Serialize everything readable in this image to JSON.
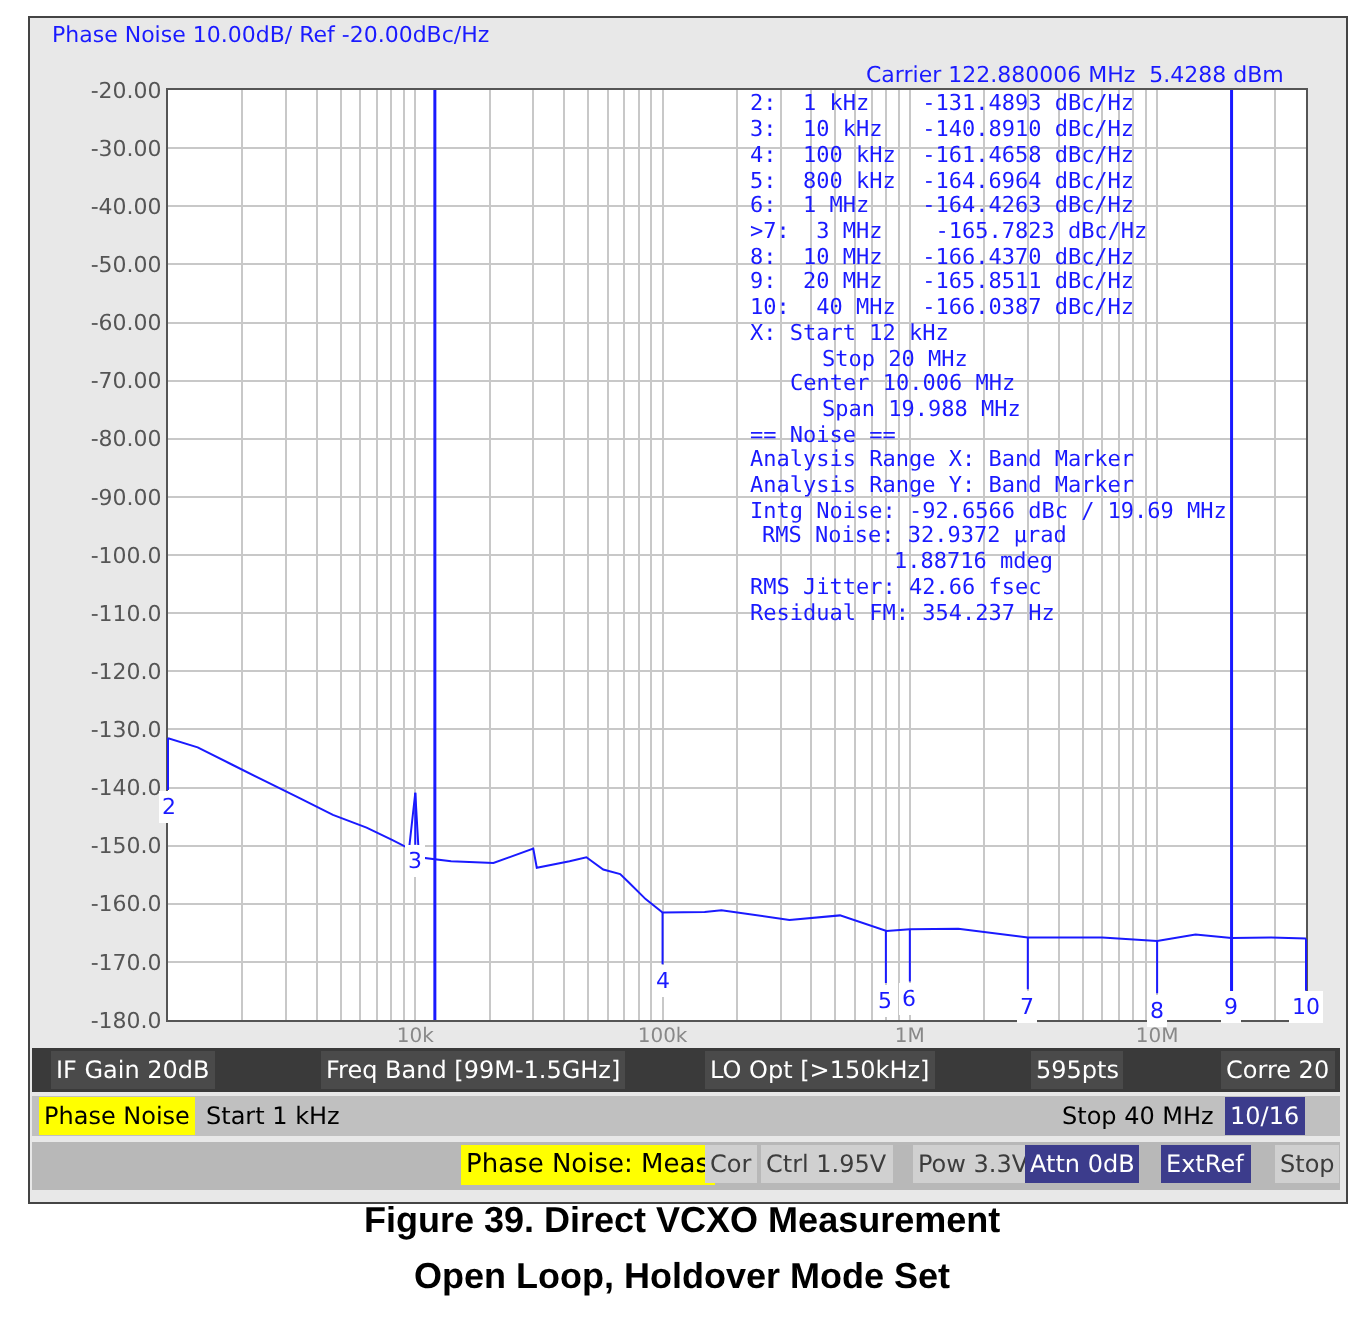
{
  "chart_data": {
    "type": "line",
    "title": "Phase Noise 10.00dB/ Ref -20.00dBc/Hz",
    "x": [
      1000,
      1318,
      1803,
      2472,
      3390,
      4645,
      6353,
      8054,
      9440,
      10000,
      10350,
      13960,
      20700,
      30000,
      31000,
      42070,
      49200,
      57560,
      67400,
      72900,
      85400,
      100000,
      148000,
      173000,
      326000,
      522000,
      805000,
      1000000,
      1570000,
      3000000,
      6000000,
      10000000,
      14300000,
      20000000,
      28900000,
      40000000
    ],
    "series": [
      {
        "color": "#1a1aff",
        "values": [
          -131.5,
          -133.1,
          -136,
          -138.9,
          -141.8,
          -144.7,
          -146.9,
          -149,
          -150.5,
          -140.9,
          -152,
          -152.7,
          -153,
          -150.5,
          -153.8,
          -152.7,
          -152,
          -154.1,
          -154.9,
          -156.3,
          -159.2,
          -161.5,
          -161.4,
          -161.1,
          -162.8,
          -162,
          -164.7,
          -164.4,
          -164.3,
          -165.8,
          -165.8,
          -166.4,
          -165.3,
          -165.9,
          -165.8,
          -166
        ]
      }
    ],
    "xlim": [
      1000,
      40000000
    ],
    "xticks": [
      {
        "value": 1000,
        "label": null
      },
      {
        "value": 2000,
        "label": null
      },
      {
        "value": 3000,
        "label": null
      },
      {
        "value": 4000,
        "label": null
      },
      {
        "value": 5000,
        "label": null
      },
      {
        "value": 6000,
        "label": null
      },
      {
        "value": 7000,
        "label": null
      },
      {
        "value": 8000,
        "label": null
      },
      {
        "value": 9000,
        "label": null
      },
      {
        "value": 10000,
        "label": "10k"
      },
      {
        "value": 20000,
        "label": null
      },
      {
        "value": 30000,
        "label": null
      },
      {
        "value": 40000,
        "label": null
      },
      {
        "value": 50000,
        "label": null
      },
      {
        "value": 60000,
        "label": null
      },
      {
        "value": 70000,
        "label": null
      },
      {
        "value": 80000,
        "label": null
      },
      {
        "value": 90000,
        "label": null
      },
      {
        "value": 100000,
        "label": "100k"
      },
      {
        "value": 200000,
        "label": null
      },
      {
        "value": 300000,
        "label": null
      },
      {
        "value": 400000,
        "label": null
      },
      {
        "value": 500000,
        "label": null
      },
      {
        "value": 600000,
        "label": null
      },
      {
        "value": 700000,
        "label": null
      },
      {
        "value": 800000,
        "label": null
      },
      {
        "value": 900000,
        "label": null
      },
      {
        "value": 1000000,
        "label": "1M"
      },
      {
        "value": 2000000,
        "label": null
      },
      {
        "value": 3000000,
        "label": null
      },
      {
        "value": 4000000,
        "label": null
      },
      {
        "value": 5000000,
        "label": null
      },
      {
        "value": 6000000,
        "label": null
      },
      {
        "value": 7000000,
        "label": null
      },
      {
        "value": 8000000,
        "label": null
      },
      {
        "value": 9000000,
        "label": null
      },
      {
        "value": 10000000,
        "label": "10M"
      },
      {
        "value": 20000000,
        "label": null
      },
      {
        "value": 30000000,
        "label": null
      },
      {
        "value": 40000000,
        "label": null
      }
    ],
    "ylim": [
      -180,
      -20
    ],
    "yticks": [
      {
        "value": -20,
        "label": "-20.00"
      },
      {
        "value": -30,
        "label": "-30.00"
      },
      {
        "value": -40,
        "label": "-40.00"
      },
      {
        "value": -50,
        "label": "-50.00"
      },
      {
        "value": -60,
        "label": "-60.00"
      },
      {
        "value": -70,
        "label": "-70.00"
      },
      {
        "value": -80,
        "label": "-80.00"
      },
      {
        "value": -90,
        "label": "-90.00"
      },
      {
        "value": -100,
        "label": "-100.0"
      },
      {
        "value": -110,
        "label": "-110.0"
      },
      {
        "value": -120,
        "label": "-120.0"
      },
      {
        "value": -130,
        "label": "-130.0"
      },
      {
        "value": -140,
        "label": "-140.0"
      },
      {
        "value": -150,
        "label": "-150.0"
      },
      {
        "value": -160,
        "label": "-160.0"
      },
      {
        "value": -170,
        "label": "-170.0"
      },
      {
        "value": -180,
        "label": "-180.0"
      }
    ],
    "log": "x",
    "grid": true,
    "marker": "none",
    "line_style": "solid",
    "ref_lines": [
      {
        "axis": "x",
        "value": 12000,
        "color": "#1a1aff"
      },
      {
        "axis": "x",
        "value": 20000000,
        "color": "#1a1aff"
      }
    ],
    "annotations": [
      {
        "text": "2",
        "x": 1000,
        "y": -131.4893
      },
      {
        "text": "3",
        "x": 10000,
        "y": -140.891
      },
      {
        "text": "4",
        "x": 100000,
        "y": -161.4658
      },
      {
        "text": "5",
        "x": 800000,
        "y": -164.6964
      },
      {
        "text": "6",
        "x": 1000000,
        "y": -164.4263
      },
      {
        "text": "7",
        "x": 3000000,
        "y": -165.7823
      },
      {
        "text": "8",
        "x": 10000000,
        "y": -166.437
      },
      {
        "text": "9",
        "x": 20000000,
        "y": -165.8511
      },
      {
        "text": "10",
        "x": 40000000,
        "y": -166.0387
      },
      "Carrier 122.880006 MHz  5.4288 dBm",
      "2:  1 kHz    -131.4893 dBc/Hz",
      "3:  10 kHz   -140.8910 dBc/Hz",
      "4:  100 kHz  -161.4658 dBc/Hz",
      "5:  800 kHz  -164.6964 dBc/Hz",
      "6:  1 MHz    -164.4263 dBc/Hz",
      ">7:  3 MHz    -165.7823 dBc/Hz",
      "8:  10 MHz   -166.4370 dBc/Hz",
      "9:  20 MHz   -165.8511 dBc/Hz",
      "10:  40 MHz  -166.0387 dBc/Hz",
      "X: Start 12 kHz",
      "Stop 20 MHz",
      "Center 10.006 MHz",
      "Span 19.988 MHz",
      "== Noise ==",
      "Analysis Range X: Band Marker",
      "Analysis Range Y: Band Marker",
      "Intg Noise: -92.6566 dBc / 19.69 MHz",
      "RMS Noise: 32.9372 µrad",
      "1.88716 mdeg",
      "RMS Jitter: 42.66 fsec",
      "Residual FM: 354.237 Hz",
      "IF Gain 20dB",
      "Freq Band [99M-1.5GHz]",
      "LO Opt [>150kHz]",
      "595pts",
      "Corre 20",
      "Phase Noise",
      "Start 1 kHz",
      "Stop 40 MHz",
      "10/16",
      "Phase Noise: Meas",
      "Cor",
      "Ctrl 1.95V",
      "Pow 3.3V",
      "Attn 0dB",
      "ExtRef",
      "Stop",
      "Figure 39. Direct VCXO Measurement",
      "Open Loop, Holdover Mode Set"
    ]
  }
}
